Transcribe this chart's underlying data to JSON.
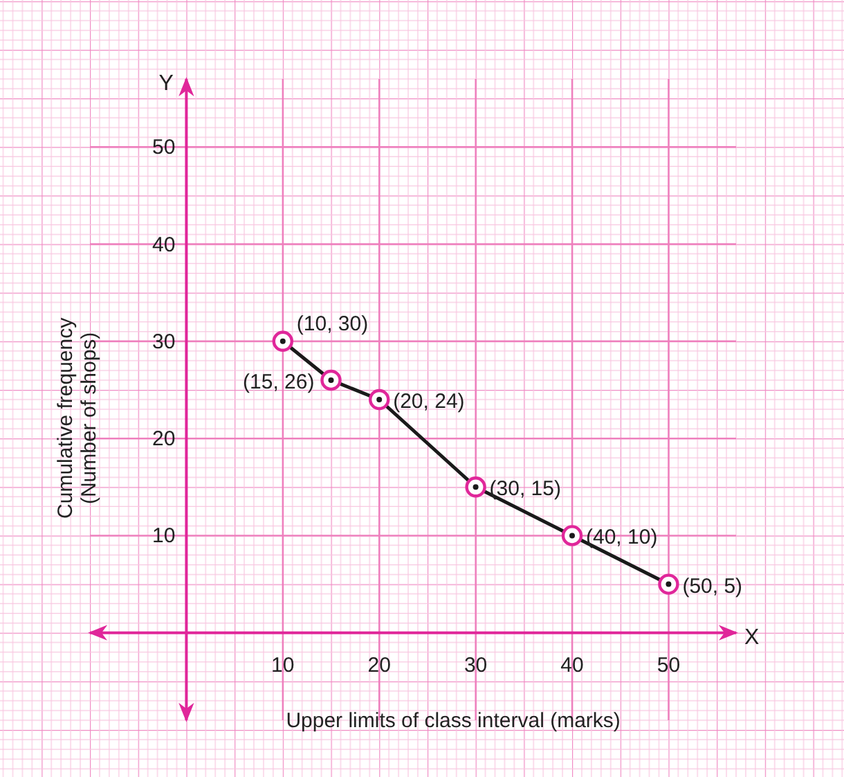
{
  "chart_data": {
    "type": "line",
    "xlabel": "Upper limits of class interval (marks)",
    "ylabel": "Cumulative frequency\n(Number of shops)",
    "x": [
      10,
      15,
      20,
      30,
      40,
      50
    ],
    "series": [
      {
        "color": "#1a1a1a",
        "values": [
          30,
          26,
          24,
          15,
          10,
          5
        ]
      }
    ],
    "xlim": [
      -10,
      57
    ],
    "ylim": [
      -9,
      57
    ],
    "xticks": [
      10,
      20,
      30,
      40,
      50
    ],
    "yticks": [
      10,
      20,
      30,
      40,
      50
    ],
    "grid": true,
    "marker": "circle",
    "line_style": "solid",
    "annotations": [
      {
        "text": "(10, 30)",
        "x": 10,
        "y": 30
      },
      {
        "text": "(15, 26)",
        "x": 15,
        "y": 26
      },
      {
        "text": "(20, 24)",
        "x": 20,
        "y": 24
      },
      {
        "text": "(30, 15)",
        "x": 30,
        "y": 15
      },
      {
        "text": "(40, 10)",
        "x": 40,
        "y": 10
      },
      {
        "text": "(50, 5)",
        "x": 50,
        "y": 5
      },
      "X",
      "Y"
    ]
  }
}
